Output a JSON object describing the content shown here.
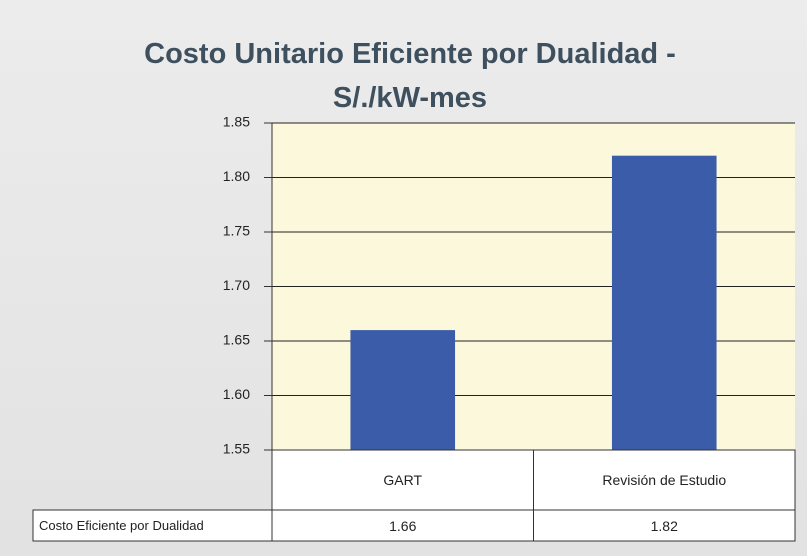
{
  "chart_data": {
    "type": "bar",
    "title": "Costo Unitario Eficiente por Dualidad - S/./kW-mes",
    "categories": [
      "GART",
      "Revisión de Estudio"
    ],
    "series": [
      {
        "name": "Costo Eficiente por Dualidad",
        "color": "#3b5ca8",
        "values": [
          1.66,
          1.82
        ]
      }
    ],
    "ylim": [
      1.55,
      1.85
    ],
    "yticks": [
      1.55,
      {
        "value": 1.6,
        "label": "1.60"
      },
      1.65,
      {
        "value": 1.7,
        "label": "1.70"
      },
      1.75,
      {
        "value": 1.8,
        "label": "1.80"
      },
      1.85
    ],
    "grid": true,
    "data_table": true
  }
}
